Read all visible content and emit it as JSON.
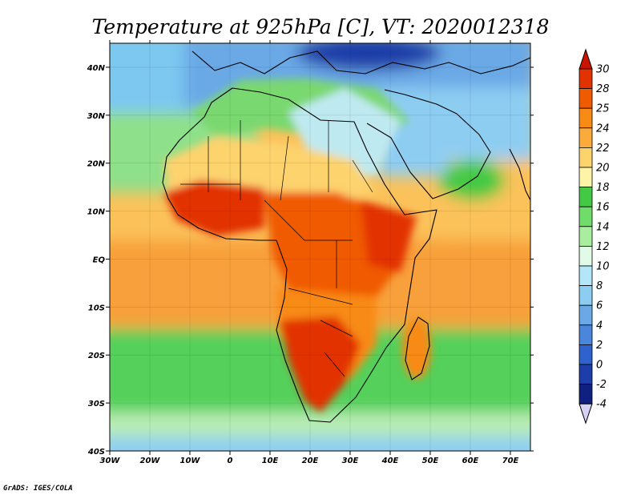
{
  "title": "Temperature at 925hPa [C], VT: 2020012318",
  "credit": "GrADS: IGES/COLA",
  "map": {
    "lon_range": [
      -30,
      75
    ],
    "lat_range": [
      -40,
      45
    ],
    "lon_ticks": [
      "30W",
      "20W",
      "10W",
      "0",
      "10E",
      "20E",
      "30E",
      "40E",
      "50E",
      "60E",
      "70E"
    ],
    "lat_ticks": [
      "40N",
      "30N",
      "20N",
      "10N",
      "EQ",
      "10S",
      "20S",
      "30S",
      "40S"
    ]
  },
  "colorbar": {
    "labels": [
      "30",
      "28",
      "25",
      "24",
      "22",
      "20",
      "18",
      "16",
      "14",
      "12",
      "10",
      "8",
      "6",
      "4",
      "2",
      "0",
      "-2",
      "-4"
    ],
    "colors": [
      "#e23200",
      "#f05a00",
      "#f88a16",
      "#fbaa3c",
      "#fdd36e",
      "#fff3a8",
      "#44c944",
      "#70dc6a",
      "#a8ee9e",
      "#e2fbe8",
      "#b4e6fa",
      "#8ecdf2",
      "#6aa9e6",
      "#4a86da",
      "#2f62cc",
      "#1d3ea8",
      "#0f2080"
    ],
    "top_color": "#c81400",
    "bottom_color": "#d6d2f6"
  }
}
